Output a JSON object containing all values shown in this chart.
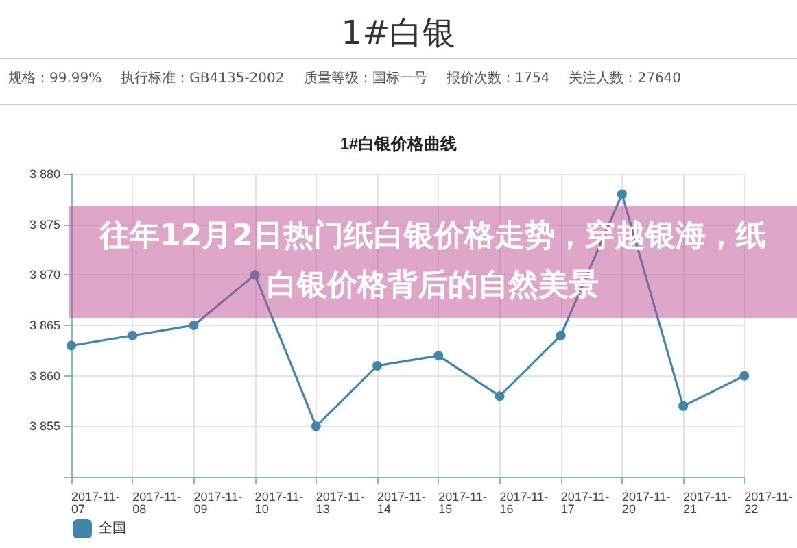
{
  "chart_data": {
    "type": "line",
    "title": "1#白银",
    "subtitle": "1#白银价格曲线",
    "annotations": [
      "规格：99.99%",
      "执行标准：GB4135-2002",
      "质量等级：国标一号",
      "报价次数：1754",
      "关注人数：27640",
      "往年12月2日热门纸白银价格走势，穿越银海，纸白银价格背后的自然美景"
    ],
    "categories": [
      "2017-11-07",
      "2017-11-08",
      "2017-11-09",
      "2017-11-10",
      "2017-11-13",
      "2017-11-14",
      "2017-11-15",
      "2017-11-16",
      "2017-11-17",
      "2017-11-20",
      "2017-11-21",
      "2017-11-22"
    ],
    "series": [
      {
        "name": "全国",
        "color": "#3f86aa",
        "values": [
          3863,
          3864,
          3865,
          3870,
          3855,
          3861,
          3862,
          3858,
          3864,
          3878,
          3857,
          3860
        ]
      }
    ],
    "ylim": [
      3850,
      3880
    ],
    "yticks": [
      {
        "value": 3850,
        "label": null
      },
      {
        "value": 3855,
        "label": "3 855"
      },
      {
        "value": 3860,
        "label": "3 860"
      },
      {
        "value": 3865,
        "label": "3 865"
      },
      {
        "value": 3870,
        "label": "3 870"
      },
      {
        "value": 3875,
        "label": "3 875"
      },
      {
        "value": 3880,
        "label": "3 880"
      }
    ],
    "grid": true,
    "legend": "bottom left",
    "marker": "circle",
    "line_style": "solid"
  }
}
